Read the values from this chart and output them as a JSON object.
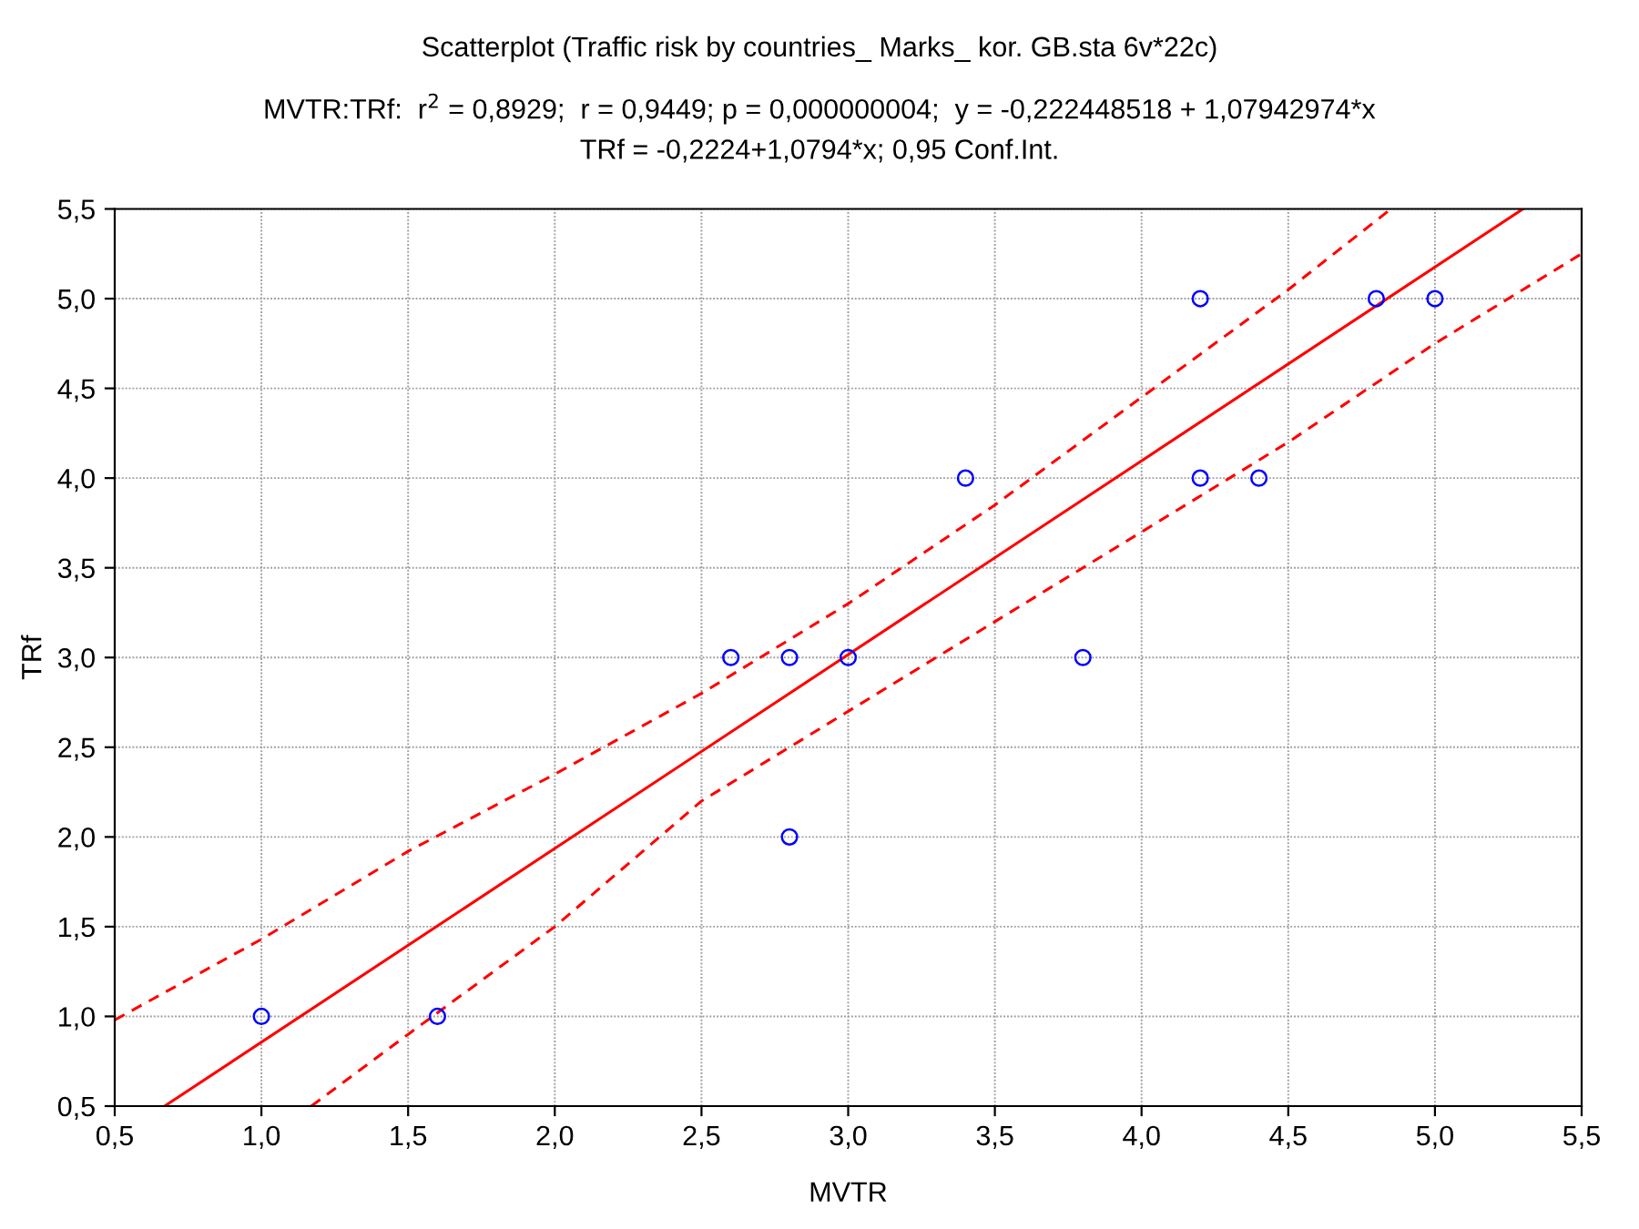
{
  "chart_data": {
    "type": "scatter",
    "title": "Scatterplot (Traffic risk by countries_ Marks_ kor. GB.sta 6v*22c)",
    "subtitle": "MVTR:TRf:  r$^{2}$ = 0,8929;  r = 0,9449; p = 0,000000004;  y = -0,222448518 + 1,07942974*x\nTRf = -0,2224+1,0794*x; 0,95 Conf.Int.",
    "xlabel": "MVTR",
    "ylabel": "TRf",
    "series": [
      {
        "color": "#0000ff",
        "marker": "circle",
        "x": [
          1.0,
          1.6,
          2.6,
          2.8,
          2.8,
          3.0,
          3.4,
          3.8,
          4.2,
          4.2,
          4.4,
          4.8,
          5.0
        ],
        "values": [
          1.0,
          1.0,
          3.0,
          3.0,
          2.0,
          3.0,
          4.0,
          3.0,
          5.0,
          4.0,
          4.0,
          5.0,
          5.0
        ]
      },
      {
        "type": "line",
        "color": "#ff0000",
        "line_style": "solid",
        "x": [
          0.67,
          5.3
        ],
        "values": [
          0.5,
          5.5
        ]
      },
      {
        "type": "line",
        "color": "#ff0000",
        "line_style": "dashed",
        "x": [
          0.5,
          1.0,
          1.5,
          2.0,
          2.5,
          3.0,
          3.5,
          4.0,
          4.5,
          4.85
        ],
        "values": [
          0.98,
          1.43,
          1.92,
          2.35,
          2.8,
          3.3,
          3.85,
          4.45,
          5.05,
          5.5
        ]
      },
      {
        "type": "line",
        "color": "#ff0000",
        "line_style": "dashed",
        "x": [
          1.17,
          1.5,
          2.0,
          2.5,
          3.0,
          3.5,
          4.0,
          4.5,
          5.0,
          5.5
        ],
        "values": [
          0.5,
          0.9,
          1.5,
          2.2,
          2.7,
          3.2,
          3.7,
          4.2,
          4.75,
          5.25
        ]
      }
    ],
    "xlim": [
      0.5,
      5.5
    ],
    "ylim": [
      0.5,
      5.5
    ],
    "xticks": [
      {
        "value": 0.5,
        "label": "0,5"
      },
      {
        "value": 1.0,
        "label": "1,0"
      },
      {
        "value": 1.5,
        "label": "1,5"
      },
      {
        "value": 2.0,
        "label": "2,0"
      },
      {
        "value": 2.5,
        "label": "2,5"
      },
      {
        "value": 3.0,
        "label": "3,0"
      },
      {
        "value": 3.5,
        "label": "3,5"
      },
      {
        "value": 4.0,
        "label": "4,0"
      },
      {
        "value": 4.5,
        "label": "4,5"
      },
      {
        "value": 5.0,
        "label": "5,0"
      },
      {
        "value": 5.5,
        "label": "5,5"
      }
    ],
    "yticks": [
      {
        "value": 0.5,
        "label": "0,5"
      },
      {
        "value": 1.0,
        "label": "1,0"
      },
      {
        "value": 1.5,
        "label": "1,5"
      },
      {
        "value": 2.0,
        "label": "2,0"
      },
      {
        "value": 2.5,
        "label": "2,5"
      },
      {
        "value": 3.0,
        "label": "3,0"
      },
      {
        "value": 3.5,
        "label": "3,5"
      },
      {
        "value": 4.0,
        "label": "4,0"
      },
      {
        "value": 4.5,
        "label": "4,5"
      },
      {
        "value": 5.0,
        "label": "5,0"
      },
      {
        "value": 5.5,
        "label": "5,5"
      }
    ],
    "grid": true
  }
}
